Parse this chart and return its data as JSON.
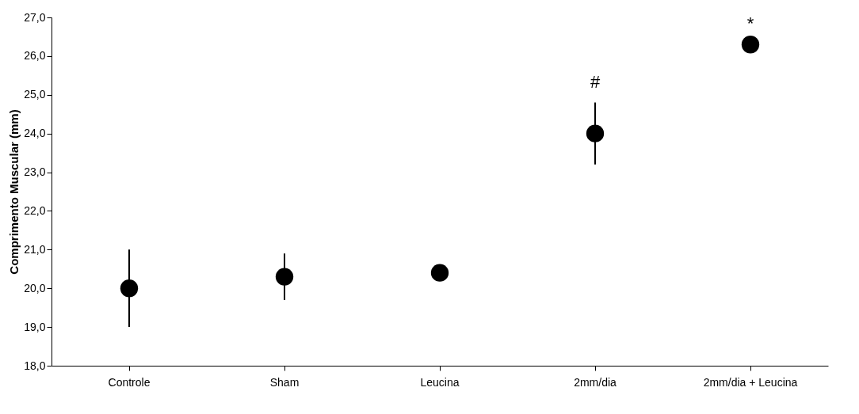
{
  "chart_data": {
    "type": "scatter",
    "ylabel": "Comprimento Muscular (mm)",
    "categories": [
      "Controle",
      "Sham",
      "Leucina",
      "2mm/dia",
      "2mm/dia + Leucina"
    ],
    "series": [
      {
        "color": "#000000",
        "values": [
          20.0,
          20.3,
          20.4,
          24.0,
          26.3
        ],
        "errors": [
          1.0,
          0.6,
          null,
          0.8,
          null
        ]
      }
    ],
    "ylim": [
      18.0,
      27.0
    ],
    "yticks": [
      {
        "value": 18,
        "label": "18,0"
      },
      {
        "value": 19,
        "label": "19,0"
      },
      {
        "value": 20,
        "label": "20,0"
      },
      {
        "value": 21,
        "label": "21,0"
      },
      {
        "value": 22,
        "label": "22,0"
      },
      {
        "value": 23,
        "label": "23,0"
      },
      {
        "value": 24,
        "label": "24,0"
      },
      {
        "value": 25,
        "label": "25,0"
      },
      {
        "value": 26,
        "label": "26,0"
      },
      {
        "value": 27,
        "label": "27,0"
      }
    ],
    "marker": "circle",
    "grid": false,
    "annotations": [
      "#",
      "*"
    ]
  }
}
